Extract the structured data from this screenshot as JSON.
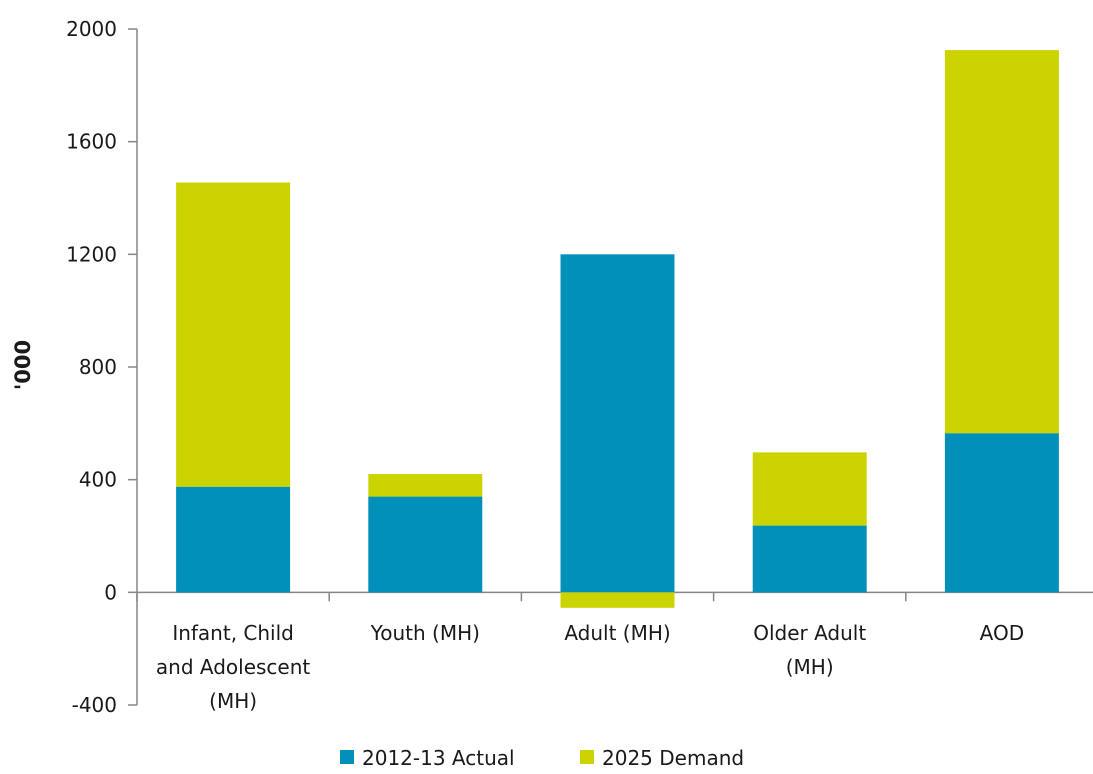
{
  "chart_data": {
    "type": "bar",
    "stacked": true,
    "categories": [
      "Infant, Child and Adolescent (MH)",
      "Youth (MH)",
      "Adult (MH)",
      "Older Adult (MH)",
      "AOD"
    ],
    "category_lines": [
      [
        "Infant, Child",
        "and Adolescent",
        "(MH)"
      ],
      [
        "Youth (MH)"
      ],
      [
        "Adult (MH)"
      ],
      [
        "Older Adult",
        "(MH)"
      ],
      [
        "AOD"
      ]
    ],
    "series": [
      {
        "name": "2012-13 Actual",
        "color": "#0090BA",
        "values": [
          375,
          340,
          1200,
          237,
          565
        ]
      },
      {
        "name": "2025 Demand",
        "color": "#CCD400",
        "values": [
          1080,
          80,
          -55,
          260,
          1360
        ]
      }
    ],
    "title": "",
    "xlabel": "",
    "ylabel": "'000",
    "ylim": [
      -400,
      2000
    ],
    "yticks": [
      -400,
      0,
      400,
      800,
      1200,
      1600,
      2000
    ],
    "grid": false,
    "legend_position": "bottom"
  }
}
